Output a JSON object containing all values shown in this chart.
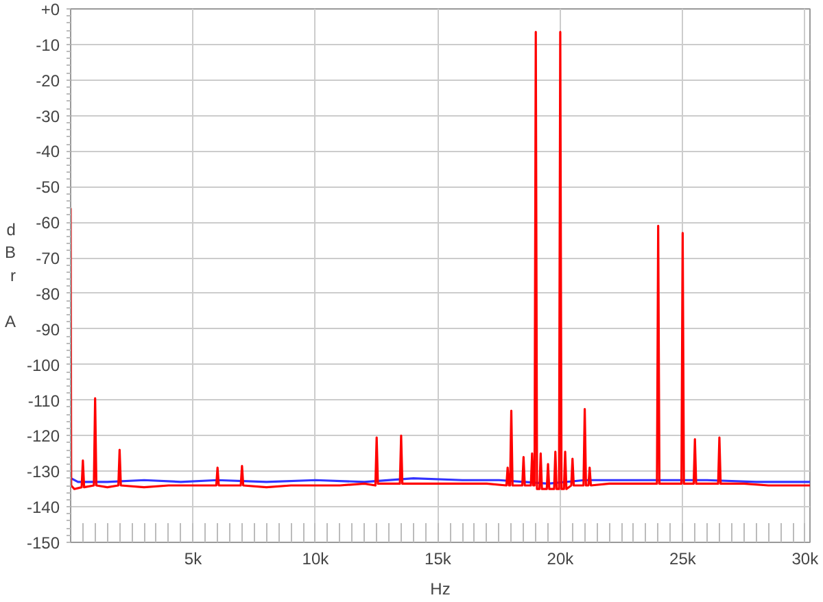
{
  "chart_data": {
    "type": "line",
    "xlabel": "Hz",
    "ylabel": "dBr A",
    "xlim": [
      0,
      30200
    ],
    "ylim": [
      -150,
      0
    ],
    "xticks": [
      {
        "value": 5000,
        "label": "5k"
      },
      {
        "value": 10000,
        "label": "10k"
      },
      {
        "value": 15000,
        "label": "15k"
      },
      {
        "value": 20000,
        "label": "20k"
      },
      {
        "value": 25000,
        "label": "25k"
      },
      {
        "value": 30000,
        "label": "30k"
      }
    ],
    "yticks": [
      {
        "value": 0,
        "label": "+0"
      },
      -10,
      -20,
      -30,
      -40,
      -50,
      -60,
      -70,
      -80,
      -90,
      -100,
      -110,
      -120,
      -130,
      -140,
      -150
    ],
    "grid": true,
    "marker": "none",
    "line_style": "solid",
    "series": [
      {
        "color": "#3333ff",
        "x": [
          20,
          300,
          1500,
          3000,
          4500,
          6000,
          8000,
          10000,
          12000,
          14000,
          16000,
          17500,
          19500,
          21000,
          22500,
          24000,
          26000,
          28000,
          30200
        ],
        "values": [
          -132,
          -133,
          -133,
          -132.5,
          -133,
          -132.5,
          -133,
          -132.5,
          -133,
          -132,
          -132.5,
          -132.5,
          -133.5,
          -132.5,
          -132.5,
          -132.5,
          -132.5,
          -133,
          -133
        ]
      },
      {
        "color": "#ff0000",
        "x": [
          0,
          20,
          150,
          450,
          500,
          550,
          950,
          1000,
          1050,
          1500,
          1950,
          2000,
          2050,
          3000,
          4000,
          5000,
          5950,
          6000,
          6050,
          6950,
          7000,
          7050,
          8000,
          9000,
          10000,
          11000,
          12000,
          12450,
          12500,
          12550,
          13450,
          13500,
          13550,
          15000,
          16000,
          17000,
          17800,
          17850,
          17900,
          17950,
          18000,
          18050,
          18450,
          18500,
          18550,
          18800,
          18850,
          18900,
          18950,
          19000,
          19050,
          19150,
          19200,
          19250,
          19450,
          19500,
          19550,
          19750,
          19800,
          19850,
          19950,
          20000,
          20050,
          20150,
          20200,
          20250,
          20450,
          20500,
          20550,
          20950,
          21000,
          21050,
          21150,
          21200,
          21250,
          22000,
          23000,
          23950,
          24000,
          24050,
          24950,
          25000,
          25050,
          25450,
          25500,
          25550,
          26450,
          26500,
          26550,
          27500,
          28500,
          29500,
          30200
        ],
        "values": [
          -56,
          -134,
          -135,
          -134.5,
          -127,
          -134.5,
          -134,
          -109.5,
          -134,
          -134.5,
          -134,
          -124,
          -134,
          -134.5,
          -134,
          -134,
          -134,
          -129,
          -134,
          -134,
          -128.5,
          -134,
          -134.5,
          -134,
          -134,
          -134,
          -133.5,
          -134,
          -120.5,
          -133.5,
          -133.5,
          -120,
          -133.5,
          -133.5,
          -133.5,
          -133.5,
          -134,
          -129,
          -134,
          -134,
          -113,
          -134,
          -134,
          -126,
          -134,
          -134,
          -125,
          -134,
          -134,
          -6.5,
          -135,
          -135,
          -125,
          -135,
          -135,
          -128,
          -135,
          -135,
          -124.5,
          -135,
          -135,
          -6.5,
          -135,
          -135,
          -124.5,
          -135,
          -134,
          -126.5,
          -134,
          -134,
          -112.5,
          -134,
          -134,
          -129,
          -134,
          -133.5,
          -133.5,
          -133.5,
          -61,
          -133.5,
          -133.5,
          -63,
          -133.5,
          -133.5,
          -121,
          -133.5,
          -133.5,
          -120.5,
          -133.5,
          -133.5,
          -134,
          -134,
          -134
        ]
      }
    ]
  }
}
